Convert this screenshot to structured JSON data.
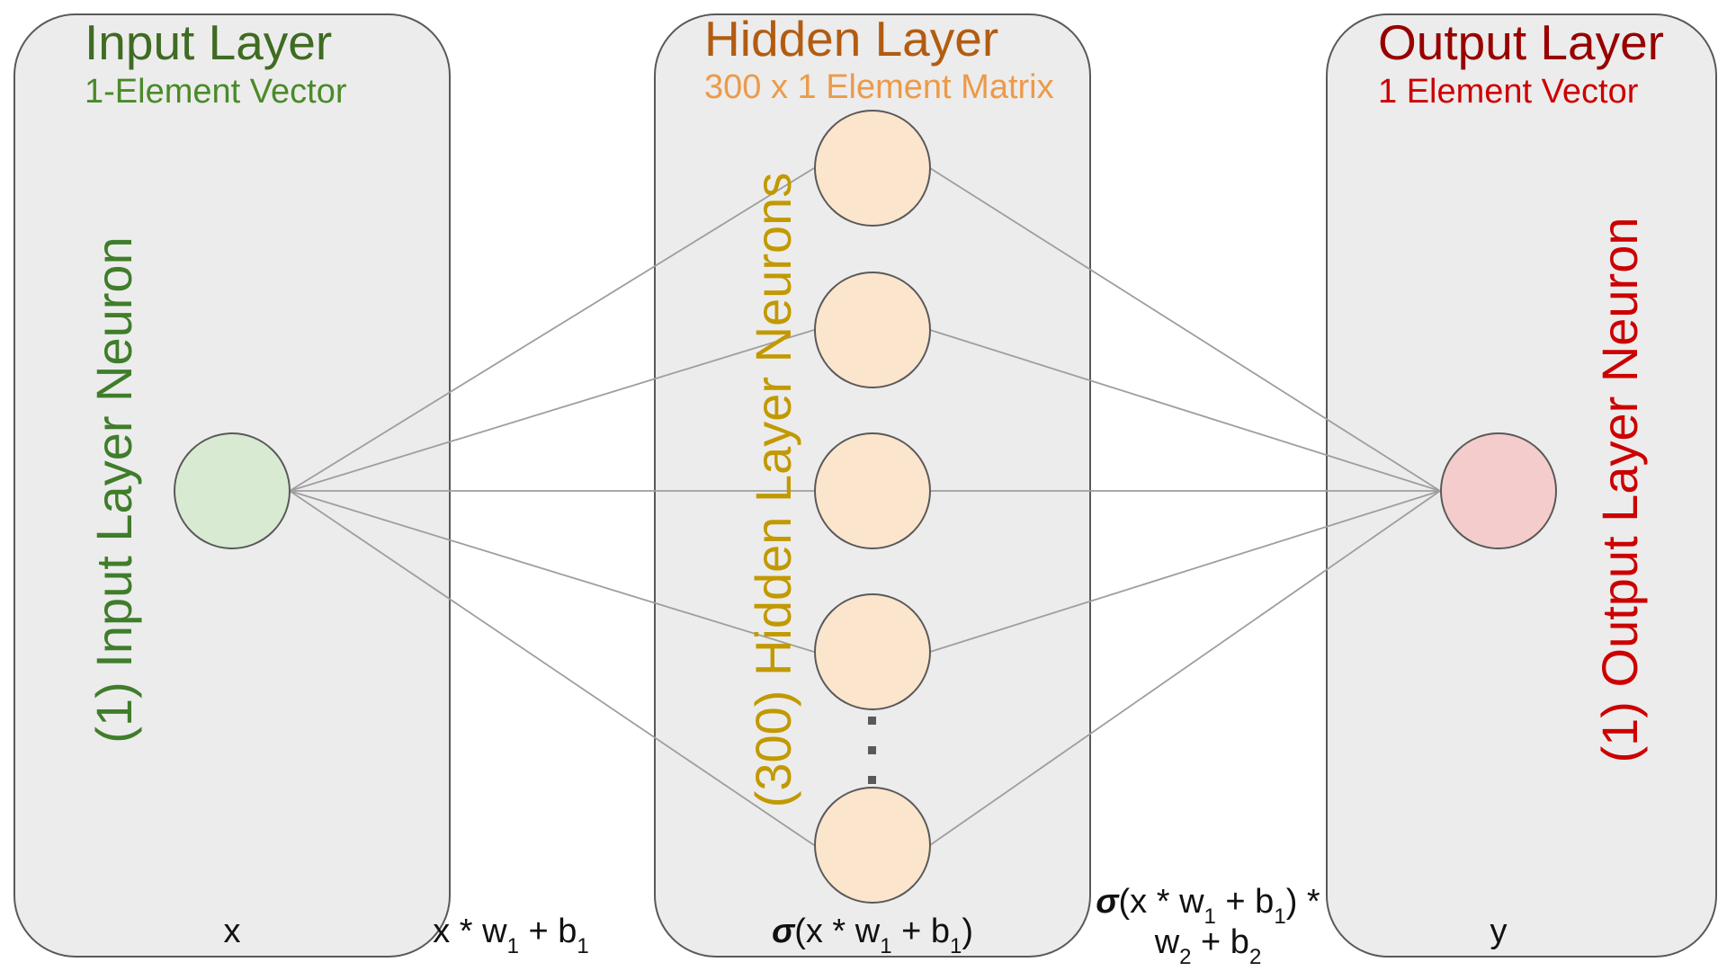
{
  "colors": {
    "input_title": "#3f6b22",
    "input_sub": "#4a8a29",
    "input_neuron_label": "#3f7d2a",
    "input_neuron_fill": "#d9ead3",
    "hidden_title": "#b25c11",
    "hidden_sub": "#ec9a4a",
    "hidden_neuron_label": "#c29900",
    "hidden_neuron_fill": "#fce5cd",
    "output_title": "#980000",
    "output_sub": "#cc0000",
    "output_neuron_label": "#cc0000",
    "output_neuron_fill": "#f4cccc",
    "panel_fill": "#ececec",
    "edge": "#9e9e9e"
  },
  "input_layer": {
    "title": "Input Layer",
    "subtitle": "1-Element Vector",
    "neuron_label": "(1) Input Layer Neuron",
    "node_text": "x"
  },
  "hidden_layer": {
    "title": "Hidden Layer",
    "subtitle": "300 x 1 Element Matrix",
    "neuron_label": "(300) Hidden Layer Neurons",
    "formula": {
      "sigma": "σ",
      "part1": "(x * w",
      "sub1": "1",
      "part2": " + b",
      "sub2": "1",
      "part3": ")"
    }
  },
  "output_layer": {
    "title": "Output Layer",
    "subtitle": "1 Element Vector",
    "neuron_label": "(1) Output Layer Neuron",
    "node_text": "y"
  },
  "between_input_hidden": {
    "part1": "x * w",
    "sub1": "1",
    "part2": " + b",
    "sub2": "1"
  },
  "between_hidden_output": {
    "line1": {
      "sigma": "σ",
      "part1": "(x * w",
      "sub1": "1",
      "part2": " + b",
      "sub2": "1",
      "part3": ") *"
    },
    "line2": {
      "part1": "w",
      "sub1": "2",
      "part2": " + b",
      "sub2": "2"
    }
  }
}
